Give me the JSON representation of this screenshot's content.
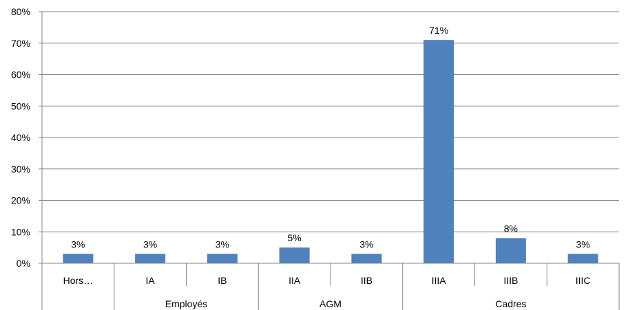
{
  "chart_data": {
    "type": "bar",
    "categories": [
      "Hors…",
      "IA",
      "IB",
      "IIA",
      "IIB",
      "IIIA",
      "IIIB",
      "IIIC"
    ],
    "values": [
      3,
      3,
      3,
      5,
      3,
      71,
      8,
      3
    ],
    "data_labels": [
      "3%",
      "3%",
      "3%",
      "5%",
      "3%",
      "71%",
      "8%",
      "3%"
    ],
    "groups": [
      {
        "label": "",
        "start": 0,
        "end": 0
      },
      {
        "label": "Employés",
        "start": 1,
        "end": 2
      },
      {
        "label": "AGM",
        "start": 3,
        "end": 4
      },
      {
        "label": "Cadres",
        "start": 5,
        "end": 7
      }
    ],
    "y_ticks": [
      0,
      10,
      20,
      30,
      40,
      50,
      60,
      70,
      80
    ],
    "y_tick_labels": [
      "0%",
      "10%",
      "20%",
      "30%",
      "40%",
      "50%",
      "60%",
      "70%",
      "80%"
    ],
    "ylim": [
      0,
      80
    ],
    "bar_color": "#4F81BD",
    "grid": true,
    "legend": "none"
  }
}
